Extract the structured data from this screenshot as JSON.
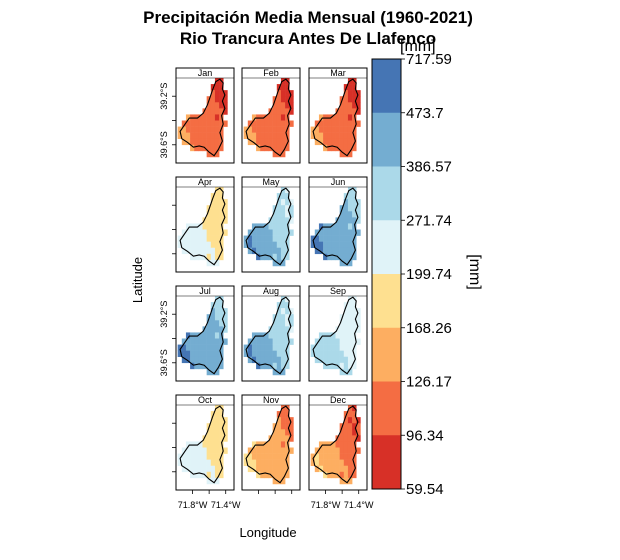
{
  "chart_data": {
    "type": "heatmap",
    "title_line1": "Precipitación Media Mensual (1960-2021)",
    "title_line2": "Rio Trancura Antes De Llafenco",
    "unit_top": "[mm]",
    "unit_side": "[mm]",
    "xlabel": "Longitude",
    "ylabel": "Latitude",
    "x_ticks": [
      "71.8°W",
      "71.4°W"
    ],
    "y_ticks": [
      "39.2°S",
      "39.6°S"
    ],
    "months": [
      "Jan",
      "Feb",
      "Mar",
      "Apr",
      "May",
      "Jun",
      "Jul",
      "Aug",
      "Sep",
      "Oct",
      "Nov",
      "Dec"
    ],
    "colorbar_breaks": [
      "717.59",
      "473.7",
      "386.57",
      "271.74",
      "199.74",
      "168.26",
      "126.17",
      "96.34",
      "59.54"
    ],
    "colorbar_colors": [
      "#4575b4",
      "#74add1",
      "#abd9e9",
      "#e0f3f8",
      "#fee090",
      "#fdae61",
      "#f46d43",
      "#d73027"
    ],
    "monthly_class_range": [
      {
        "month": "Jan",
        "min_class": 0,
        "max_class": 2
      },
      {
        "month": "Feb",
        "min_class": 0,
        "max_class": 2
      },
      {
        "month": "Mar",
        "min_class": 0,
        "max_class": 2
      },
      {
        "month": "Apr",
        "min_class": 3,
        "max_class": 4
      },
      {
        "month": "May",
        "min_class": 4,
        "max_class": 7
      },
      {
        "month": "Jun",
        "min_class": 5,
        "max_class": 7
      },
      {
        "month": "Jul",
        "min_class": 5,
        "max_class": 7
      },
      {
        "month": "Aug",
        "min_class": 4,
        "max_class": 7
      },
      {
        "month": "Sep",
        "min_class": 4,
        "max_class": 5
      },
      {
        "month": "Oct",
        "min_class": 3,
        "max_class": 4
      },
      {
        "month": "Nov",
        "min_class": 1,
        "max_class": 3
      },
      {
        "month": "Dec",
        "min_class": 0,
        "max_class": 3
      }
    ]
  }
}
